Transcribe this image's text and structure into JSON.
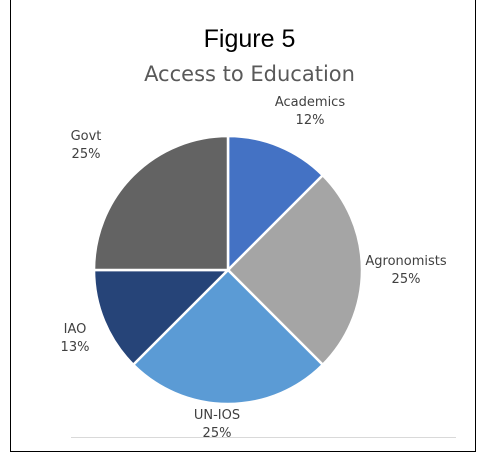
{
  "figure_label": "Figure 5",
  "chart_data": {
    "type": "pie",
    "title": "Access to Education",
    "slices": [
      {
        "label": "Academics",
        "percent_label": "12%",
        "value": 12.5,
        "color": "#4472C4"
      },
      {
        "label": "Agronomists",
        "percent_label": "25%",
        "value": 25,
        "color": "#A5A5A5"
      },
      {
        "label": "UN-IOS",
        "percent_label": "25%",
        "value": 25,
        "color": "#5B9BD5"
      },
      {
        "label": "IAO",
        "percent_label": "13%",
        "value": 12.5,
        "color": "#264478"
      },
      {
        "label": "Govt",
        "percent_label": "25%",
        "value": 25,
        "color": "#636363"
      }
    ],
    "start_angle": "12 o'clock",
    "direction": "clockwise",
    "legend": "none"
  }
}
